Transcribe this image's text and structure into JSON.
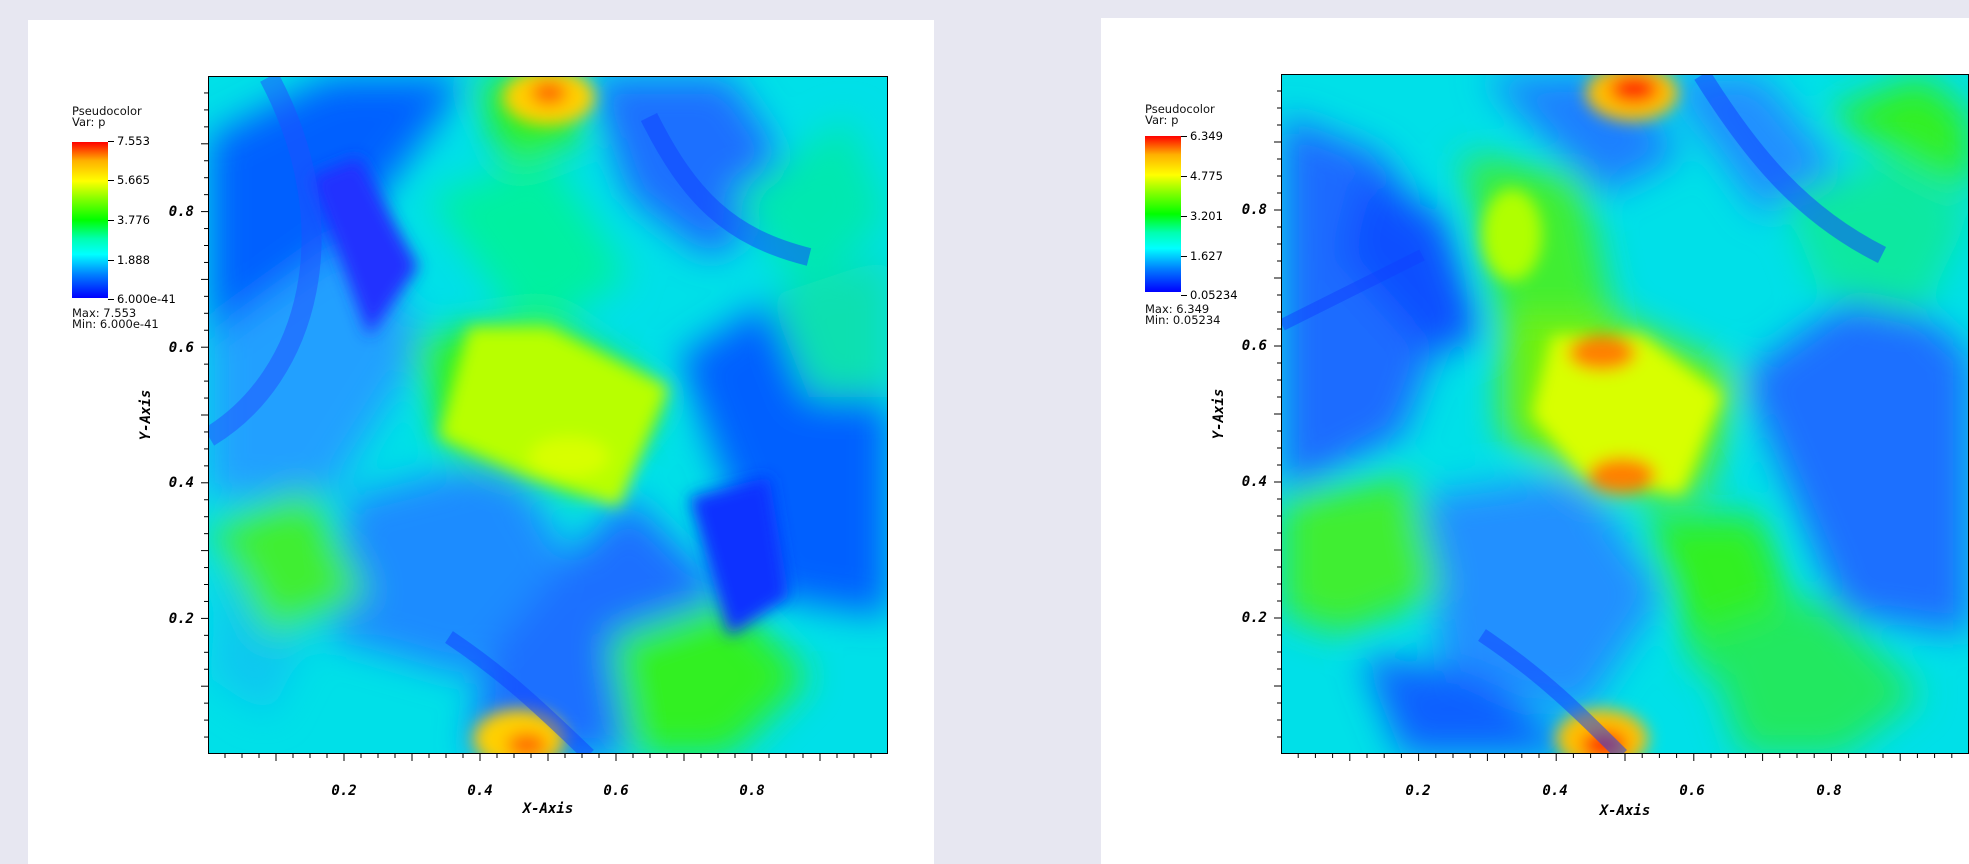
{
  "chart_data": [
    {
      "type": "heatmap",
      "legend": {
        "title": "Pseudocolor",
        "var": "Var: p",
        "colorbar_labels": [
          "7.553",
          "5.665",
          "3.776",
          "1.888",
          "6.000e-41"
        ],
        "max_text": "Max:  7.553",
        "min_text": "Min:  6.000e-41",
        "range": [
          0.0,
          7.553
        ]
      },
      "xlabel": "X-Axis",
      "ylabel": "Y-Axis",
      "xlim": [
        0,
        1
      ],
      "ylim": [
        0,
        1
      ],
      "xticks": [
        "0.2",
        "0.4",
        "0.6",
        "0.8"
      ],
      "yticks": [
        "0.2",
        "0.4",
        "0.6",
        "0.8"
      ],
      "colormap": [
        "#0000ff",
        "#0080ff",
        "#00ffff",
        "#00ff00",
        "#ffff00",
        "#ff8000",
        "#ff0000"
      ]
    },
    {
      "type": "heatmap",
      "legend": {
        "title": "Pseudocolor",
        "var": "Var: p",
        "colorbar_labels": [
          "6.349",
          "4.775",
          "3.201",
          "1.627",
          "0.05234"
        ],
        "max_text": "Max:  6.349",
        "min_text": "Min:  0.05234",
        "range": [
          0.05234,
          6.349
        ]
      },
      "xlabel": "X-Axis",
      "ylabel": "Y-Axis",
      "xlim": [
        0,
        1
      ],
      "ylim": [
        0,
        1
      ],
      "xticks": [
        "0.2",
        "0.4",
        "0.6",
        "0.8"
      ],
      "yticks": [
        "0.2",
        "0.4",
        "0.6",
        "0.8"
      ],
      "colormap": [
        "#0000ff",
        "#0080ff",
        "#00ffff",
        "#00ff00",
        "#ffff00",
        "#ff8000",
        "#ff0000"
      ]
    }
  ]
}
